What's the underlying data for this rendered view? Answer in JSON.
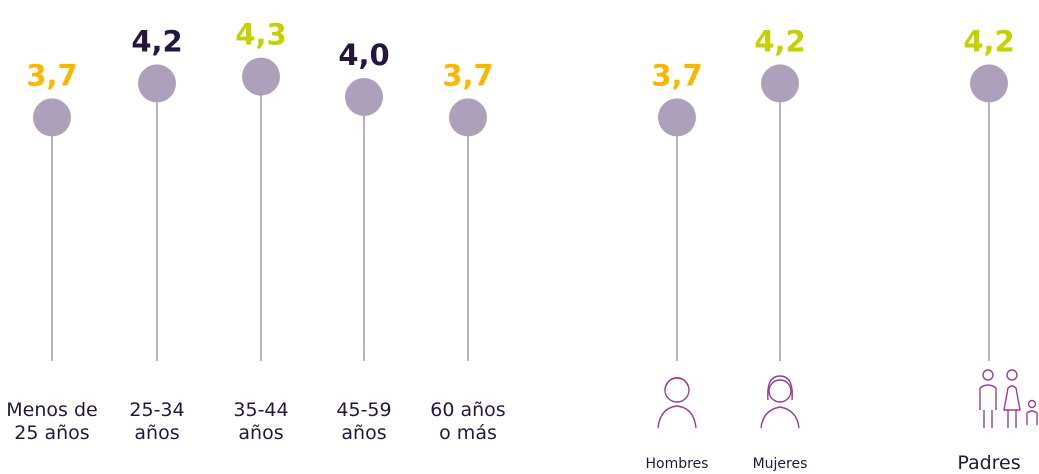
{
  "chart_data": [
    {
      "type": "lollipop",
      "categories": [
        "Menos de 25 años",
        "25-34 años",
        "35-44 años",
        "45-59 años",
        "60 años o más"
      ],
      "values": [
        3.7,
        4.2,
        4.3,
        4.0,
        3.7
      ],
      "value_labels": [
        "3,7",
        "4,2",
        "4,3",
        "4,0",
        "3,7"
      ],
      "label_colors": [
        "#f6b800",
        "#24163f",
        "#c3d100",
        "#24163f",
        "#f6b800"
      ],
      "color": "#ada0bb",
      "ylim": [
        0,
        5
      ]
    },
    {
      "type": "lollipop",
      "categories": [
        "Hombres",
        "Mujeres"
      ],
      "values": [
        3.7,
        4.2
      ],
      "value_labels": [
        "3,7",
        "4,2"
      ],
      "label_colors": [
        "#f6b800",
        "#c3d100"
      ],
      "color": "#ada0bb",
      "ylim": [
        0,
        5
      ]
    },
    {
      "type": "lollipop",
      "categories": [
        "Padres"
      ],
      "values": [
        4.2
      ],
      "value_labels": [
        "4,2"
      ],
      "label_colors": [
        "#c3d100"
      ],
      "color": "#ada0bb",
      "ylim": [
        0,
        5
      ]
    }
  ]
}
